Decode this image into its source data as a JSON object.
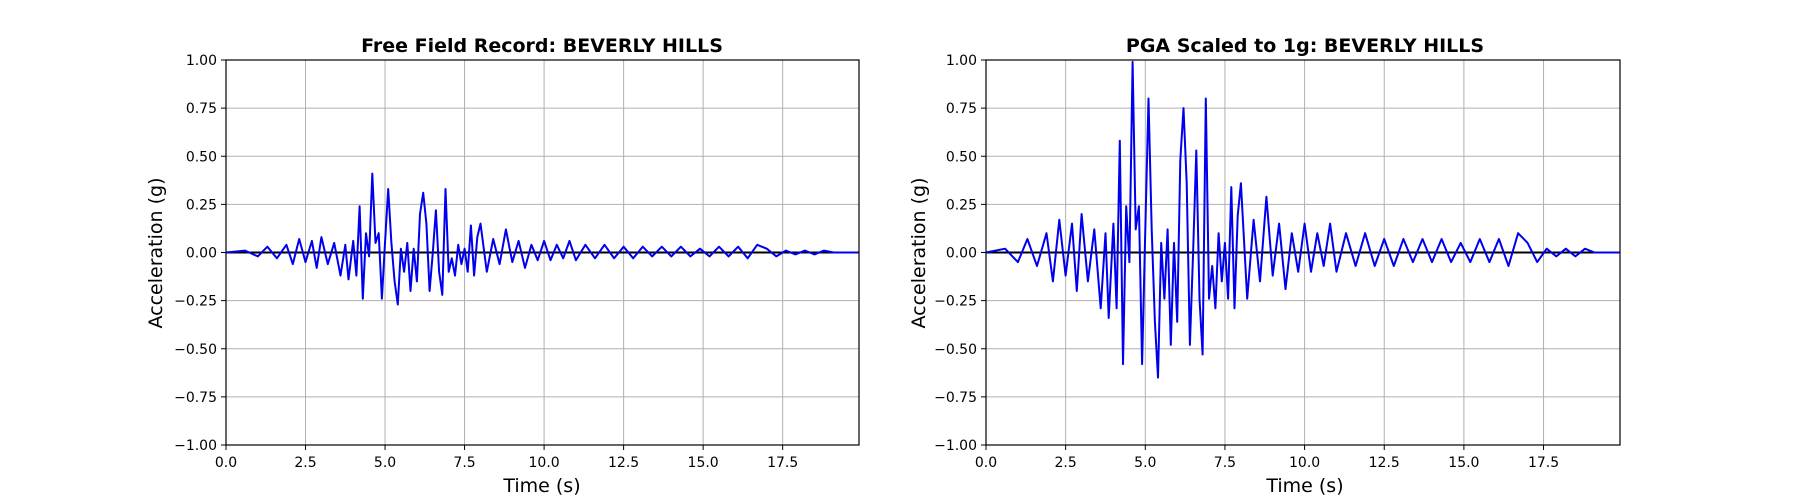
{
  "chart_data": [
    {
      "type": "line",
      "title": "Free Field Record: BEVERLY HILLS",
      "xlabel": "Time (s)",
      "ylabel": "Acceleration (g)",
      "xlim": [
        0,
        19.9
      ],
      "ylim": [
        -1.0,
        1.0
      ],
      "xticks": [
        "0.0",
        "2.5",
        "5.0",
        "7.5",
        "10.0",
        "12.5",
        "15.0",
        "17.5"
      ],
      "yticks": [
        "1.00",
        "0.75",
        "0.50",
        "0.25",
        "0.00",
        "−0.25",
        "−0.50",
        "−0.75",
        "−1.00"
      ],
      "grid": true,
      "line_color": "#0000ee",
      "series": [
        {
          "x": [
            0,
            0.6,
            1.0,
            1.3,
            1.6,
            1.9,
            2.1,
            2.3,
            2.5,
            2.7,
            2.85,
            3.0,
            3.2,
            3.4,
            3.6,
            3.75,
            3.85,
            4.0,
            4.1,
            4.2,
            4.3,
            4.4,
            4.5,
            4.6,
            4.7,
            4.8,
            4.9,
            5.0,
            5.1,
            5.2,
            5.3,
            5.4,
            5.5,
            5.6,
            5.7,
            5.8,
            5.9,
            6.0,
            6.1,
            6.2,
            6.3,
            6.4,
            6.5,
            6.6,
            6.7,
            6.8,
            6.9,
            7.0,
            7.1,
            7.2,
            7.3,
            7.4,
            7.5,
            7.6,
            7.7,
            7.8,
            7.9,
            8.0,
            8.2,
            8.4,
            8.6,
            8.8,
            9.0,
            9.2,
            9.4,
            9.6,
            9.8,
            10.0,
            10.2,
            10.4,
            10.6,
            10.8,
            11.0,
            11.3,
            11.6,
            11.9,
            12.2,
            12.5,
            12.8,
            13.1,
            13.4,
            13.7,
            14.0,
            14.3,
            14.6,
            14.9,
            15.2,
            15.5,
            15.8,
            16.1,
            16.4,
            16.7,
            17.0,
            17.3,
            17.6,
            17.9,
            18.2,
            18.5,
            18.8,
            19.1,
            19.4,
            19.9
          ],
          "y": [
            0.0,
            0.01,
            -0.02,
            0.03,
            -0.03,
            0.04,
            -0.06,
            0.07,
            -0.05,
            0.06,
            -0.08,
            0.08,
            -0.06,
            0.05,
            -0.12,
            0.04,
            -0.14,
            0.06,
            -0.12,
            0.24,
            -0.24,
            0.1,
            -0.02,
            0.41,
            0.05,
            0.1,
            -0.24,
            0.05,
            0.33,
            0.05,
            -0.15,
            -0.27,
            0.02,
            -0.1,
            0.05,
            -0.2,
            0.02,
            -0.15,
            0.2,
            0.31,
            0.15,
            -0.2,
            0.0,
            0.22,
            -0.1,
            -0.22,
            0.33,
            -0.1,
            -0.03,
            -0.12,
            0.04,
            -0.06,
            0.02,
            -0.1,
            0.14,
            -0.12,
            0.08,
            0.15,
            -0.1,
            0.07,
            -0.06,
            0.12,
            -0.05,
            0.06,
            -0.08,
            0.04,
            -0.04,
            0.06,
            -0.04,
            0.04,
            -0.03,
            0.06,
            -0.04,
            0.04,
            -0.03,
            0.04,
            -0.03,
            0.03,
            -0.03,
            0.03,
            -0.02,
            0.03,
            -0.02,
            0.03,
            -0.02,
            0.02,
            -0.02,
            0.03,
            -0.02,
            0.03,
            -0.03,
            0.04,
            0.02,
            -0.02,
            0.01,
            -0.01,
            0.01,
            -0.01,
            0.01,
            0.0,
            0.0,
            0.0
          ]
        }
      ]
    },
    {
      "type": "line",
      "title": "PGA Scaled to 1g: BEVERLY HILLS",
      "xlabel": "Time (s)",
      "ylabel": "Acceleration (g)",
      "xlim": [
        0,
        19.9
      ],
      "ylim": [
        -1.0,
        1.0
      ],
      "xticks": [
        "0.0",
        "2.5",
        "5.0",
        "7.5",
        "10.0",
        "12.5",
        "15.0",
        "17.5"
      ],
      "yticks": [
        "1.00",
        "0.75",
        "0.50",
        "0.25",
        "0.00",
        "−0.25",
        "−0.50",
        "−0.75",
        "−1.00"
      ],
      "grid": true,
      "line_color": "#0000ee",
      "series": [
        {
          "x": [
            0,
            0.6,
            1.0,
            1.3,
            1.6,
            1.9,
            2.1,
            2.3,
            2.5,
            2.7,
            2.85,
            3.0,
            3.2,
            3.4,
            3.6,
            3.75,
            3.85,
            4.0,
            4.1,
            4.2,
            4.3,
            4.4,
            4.5,
            4.6,
            4.7,
            4.8,
            4.9,
            5.0,
            5.1,
            5.2,
            5.3,
            5.4,
            5.5,
            5.6,
            5.7,
            5.8,
            5.9,
            6.0,
            6.1,
            6.2,
            6.3,
            6.4,
            6.5,
            6.6,
            6.7,
            6.8,
            6.9,
            7.0,
            7.1,
            7.2,
            7.3,
            7.4,
            7.5,
            7.6,
            7.7,
            7.8,
            7.9,
            8.0,
            8.2,
            8.4,
            8.6,
            8.8,
            9.0,
            9.2,
            9.4,
            9.6,
            9.8,
            10.0,
            10.2,
            10.4,
            10.6,
            10.8,
            11.0,
            11.3,
            11.6,
            11.9,
            12.2,
            12.5,
            12.8,
            13.1,
            13.4,
            13.7,
            14.0,
            14.3,
            14.6,
            14.9,
            15.2,
            15.5,
            15.8,
            16.1,
            16.4,
            16.7,
            17.0,
            17.3,
            17.6,
            17.9,
            18.2,
            18.5,
            18.8,
            19.1,
            19.4,
            19.9
          ],
          "y": [
            0.0,
            0.02,
            -0.05,
            0.07,
            -0.07,
            0.1,
            -0.15,
            0.17,
            -0.12,
            0.15,
            -0.2,
            0.2,
            -0.15,
            0.12,
            -0.29,
            0.1,
            -0.34,
            0.15,
            -0.29,
            0.58,
            -0.58,
            0.24,
            -0.05,
            0.99,
            0.12,
            0.24,
            -0.58,
            0.12,
            0.8,
            0.12,
            -0.36,
            -0.65,
            0.05,
            -0.24,
            0.12,
            -0.48,
            0.05,
            -0.36,
            0.48,
            0.75,
            0.36,
            -0.48,
            0.0,
            0.53,
            -0.24,
            -0.53,
            0.8,
            -0.24,
            -0.07,
            -0.29,
            0.1,
            -0.15,
            0.05,
            -0.24,
            0.34,
            -0.29,
            0.19,
            0.36,
            -0.24,
            0.17,
            -0.15,
            0.29,
            -0.12,
            0.15,
            -0.19,
            0.1,
            -0.1,
            0.15,
            -0.1,
            0.1,
            -0.07,
            0.15,
            -0.1,
            0.1,
            -0.07,
            0.1,
            -0.07,
            0.07,
            -0.07,
            0.07,
            -0.05,
            0.07,
            -0.05,
            0.07,
            -0.05,
            0.05,
            -0.05,
            0.07,
            -0.05,
            0.07,
            -0.07,
            0.1,
            0.05,
            -0.05,
            0.02,
            -0.02,
            0.02,
            -0.02,
            0.02,
            0.0,
            0.0,
            0.0
          ]
        }
      ]
    }
  ]
}
